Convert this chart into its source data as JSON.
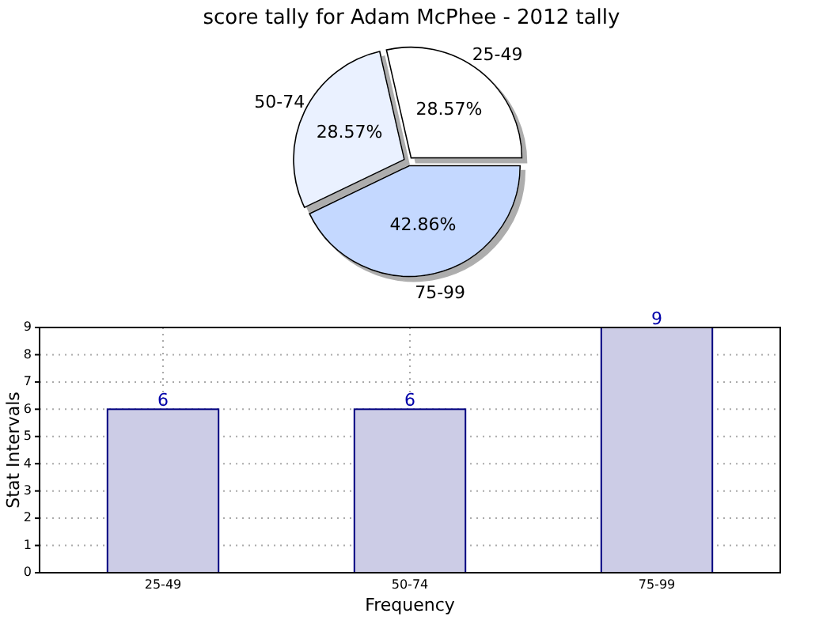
{
  "chart_data": [
    {
      "type": "pie",
      "title": "score tally for Adam McPhee - 2012 tally",
      "categories": [
        "25-49",
        "50-74",
        "75-99"
      ],
      "values": [
        28.57,
        28.57,
        42.86
      ],
      "colors": [
        "#ffffff",
        "#eaf1ff",
        "#c4d8ff"
      ],
      "value_labels": [
        "28.57%",
        "28.57%",
        "42.86%"
      ]
    },
    {
      "type": "bar",
      "categories": [
        "25-49",
        "50-74",
        "75-99"
      ],
      "values": [
        6,
        6,
        9
      ],
      "color": "#ccccE6",
      "xlabel": "Frequency",
      "ylabel": "Stat Intervals",
      "ylim": [
        0,
        9
      ],
      "yticks": [
        0,
        1,
        2,
        3,
        4,
        5,
        6,
        7,
        8,
        9
      ],
      "grid": true,
      "data_labels": true
    }
  ]
}
